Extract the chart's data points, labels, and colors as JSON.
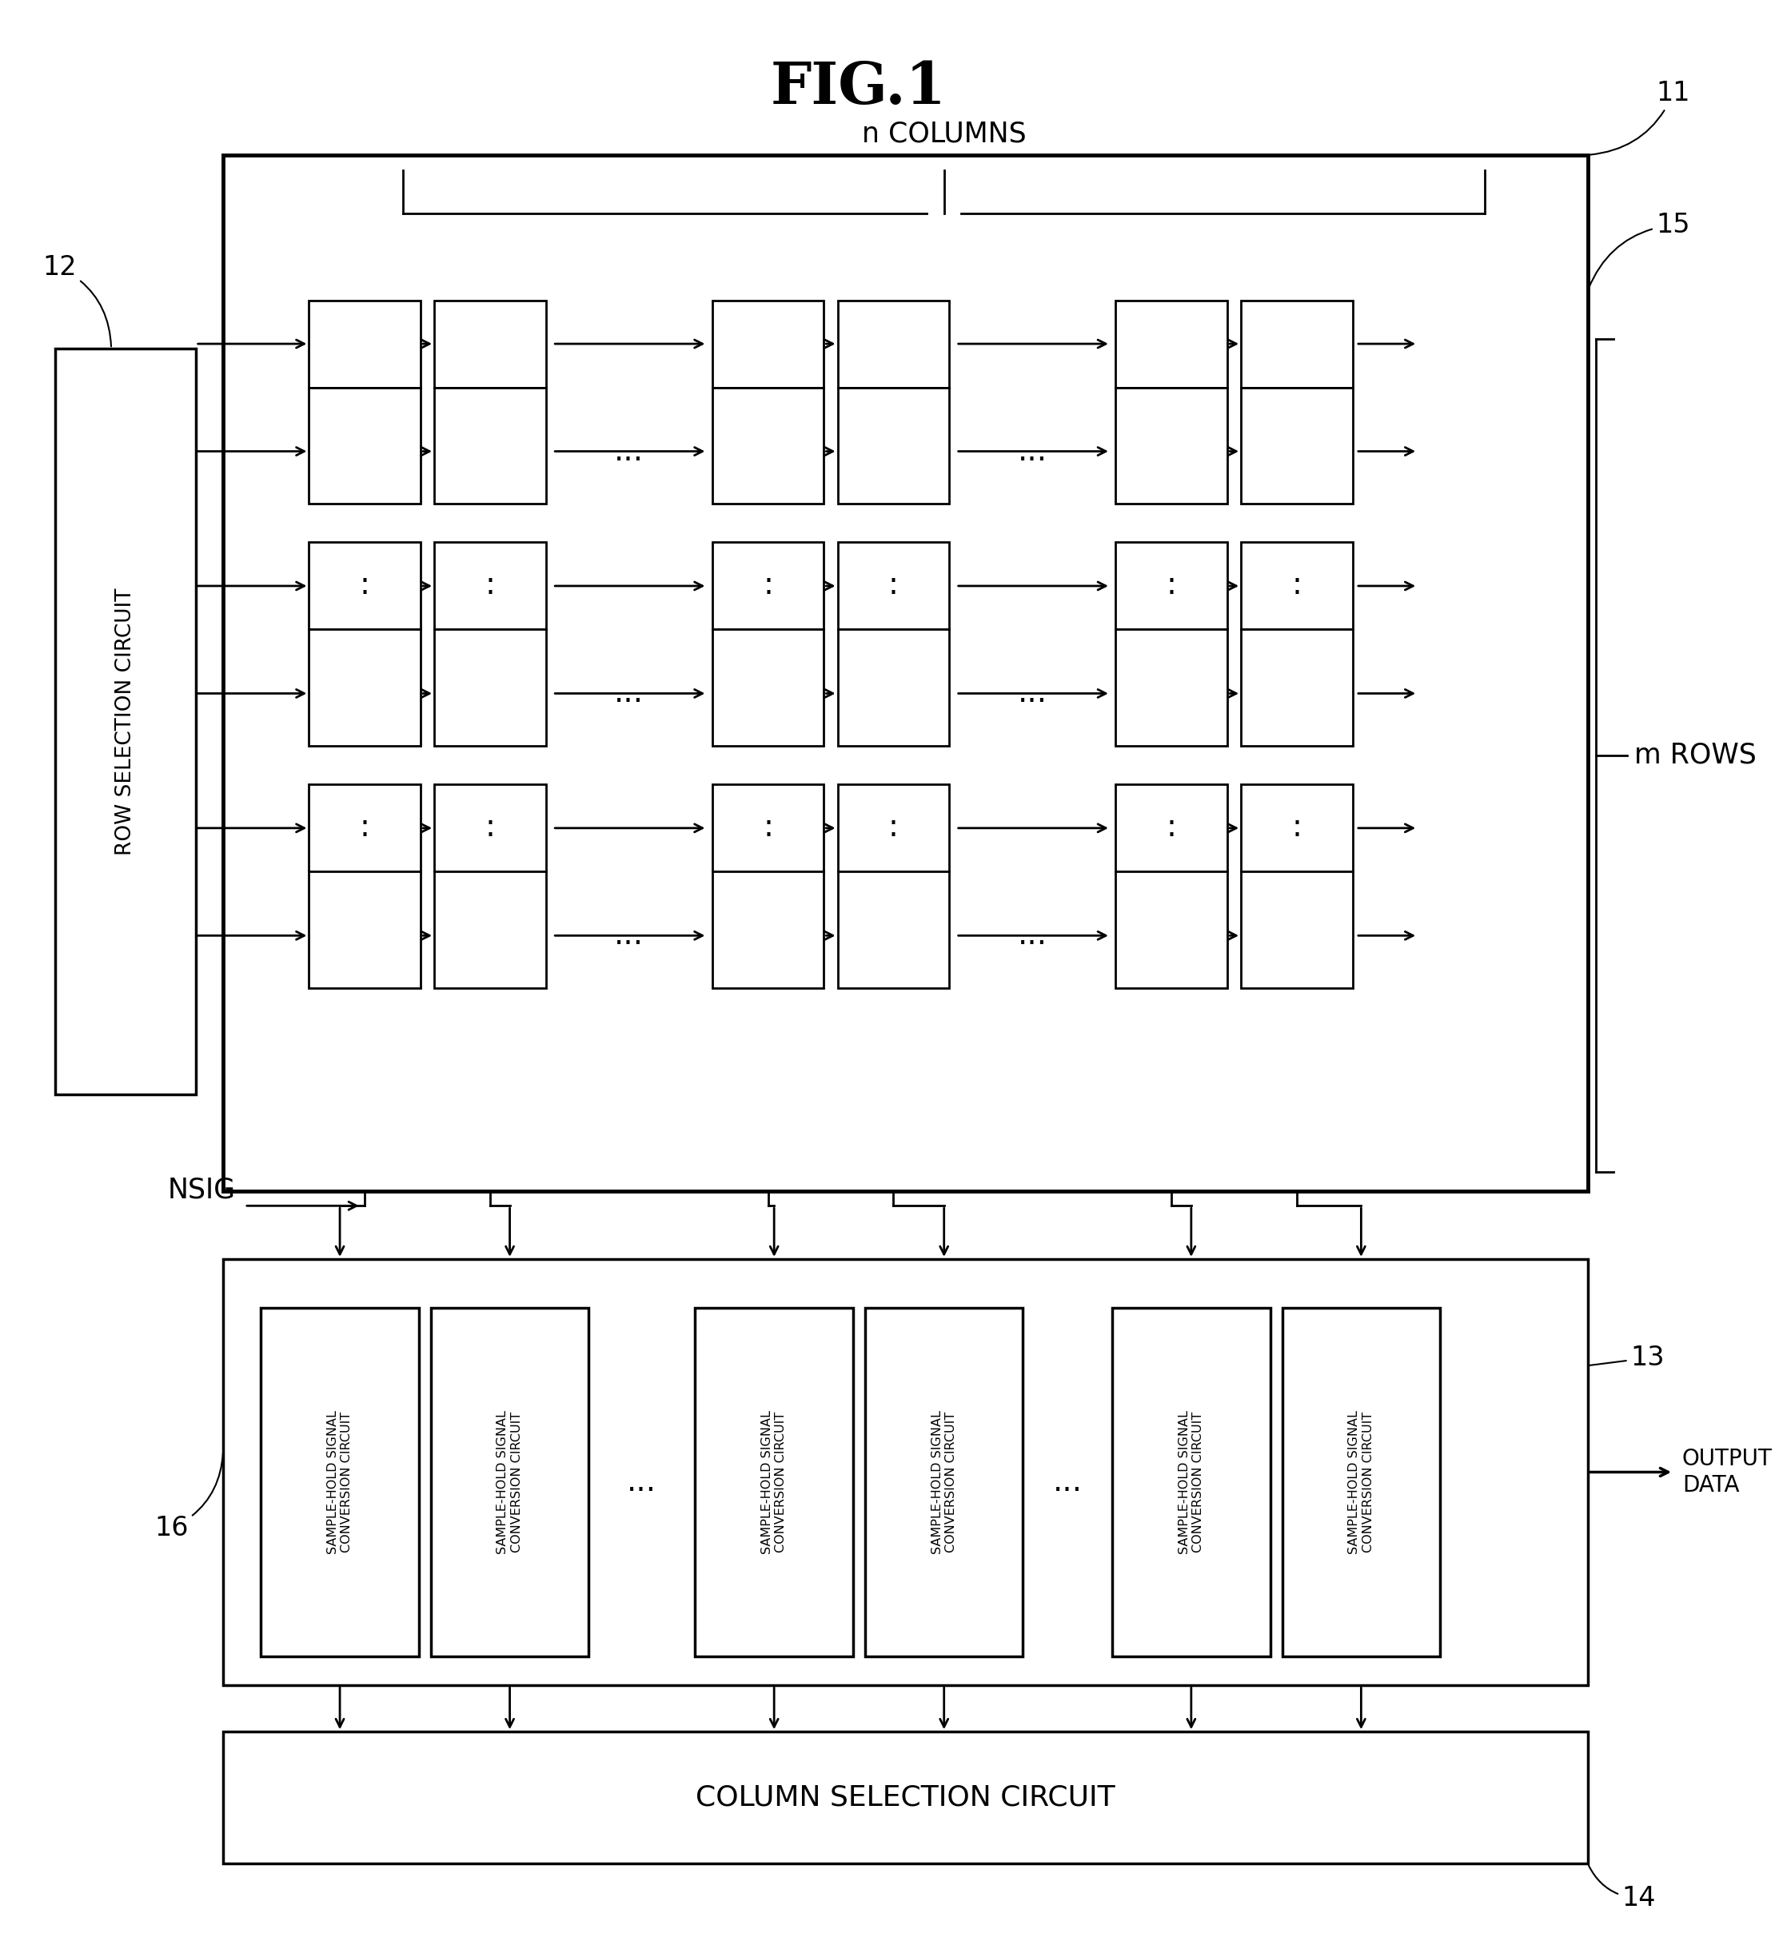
{
  "title": "FIG.1",
  "bg_color": "#ffffff",
  "line_color": "#000000",
  "title_fontsize": 52,
  "label_fontsize": 22,
  "small_fontsize": 18,
  "ref_fontsize": 22,
  "n_columns_label": "n COLUMNS",
  "m_rows_label": "m ROWS",
  "ref11": "11",
  "ref12": "12",
  "ref13": "13",
  "ref14": "14",
  "ref15": "15",
  "ref16": "16",
  "nsig_label": "NSIG",
  "output_data_label": "OUTPUT\nDATA",
  "row_sel_label": "ROW SELECTION CIRCUIT",
  "col_sel_label": "COLUMN SELECTION CIRCUIT",
  "shsc_label": "SAMPLE-HOLD SIGNAL\nCONVERSION CIRCUIT"
}
